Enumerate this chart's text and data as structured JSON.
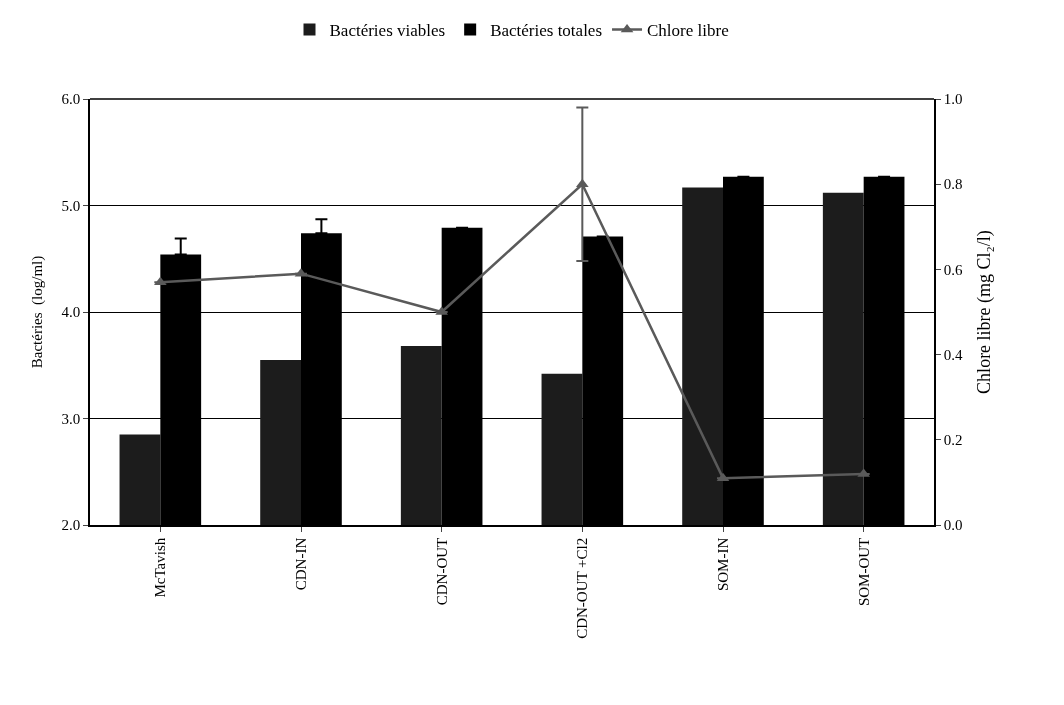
{
  "chart_data": {
    "type": "bar",
    "ylabel": "Bactéries  (log/ml)",
    "y2label": "Chlore libre (mg Cl₂/l)",
    "categories": [
      "McTavish",
      "CDN-IN",
      "CDN-OUT",
      "CDN-OUT +Cl2",
      "SOM-IN",
      "SOM-OUT"
    ],
    "series": [
      {
        "name": "Bactéries viables",
        "color": "#1c1c1c",
        "values": [
          2.85,
          3.55,
          3.68,
          3.42,
          5.17,
          5.12
        ]
      },
      {
        "name": "Bactéries totales",
        "color": "#000000",
        "values": [
          4.54,
          4.74,
          4.79,
          4.71,
          5.27,
          5.27
        ],
        "errors": [
          [
            4.54,
            4.69
          ],
          [
            4.74,
            4.87
          ],
          null,
          null,
          null,
          null
        ]
      },
      {
        "name": "Chlore libre",
        "type": "line",
        "axis": "y2",
        "color": "#5a5a5a",
        "marker": "triangle",
        "values": [
          0.57,
          0.59,
          0.5,
          0.8,
          0.11,
          0.12
        ],
        "errors": [
          null,
          null,
          null,
          0.18,
          null,
          null
        ]
      }
    ],
    "ylim": [
      2.0,
      6.0
    ],
    "yticks": [
      {
        "value": 2,
        "label": "2.0"
      },
      {
        "value": 3,
        "label": "3.0"
      },
      {
        "value": 4,
        "label": "4.0"
      },
      {
        "value": 5,
        "label": "5.0"
      },
      {
        "value": 6,
        "label": "6.0"
      }
    ],
    "y2lim": [
      0.0,
      1.0
    ],
    "y2ticks": [
      {
        "value": 0,
        "label": "0.0"
      },
      {
        "value": 0.2,
        "label": "0.2"
      },
      {
        "value": 0.4,
        "label": "0.4"
      },
      {
        "value": 0.6,
        "label": "0.6"
      },
      {
        "value": 0.8,
        "label": "0.8"
      },
      {
        "value": 1,
        "label": "1.0"
      }
    ],
    "grid": "y",
    "legend": "top"
  }
}
